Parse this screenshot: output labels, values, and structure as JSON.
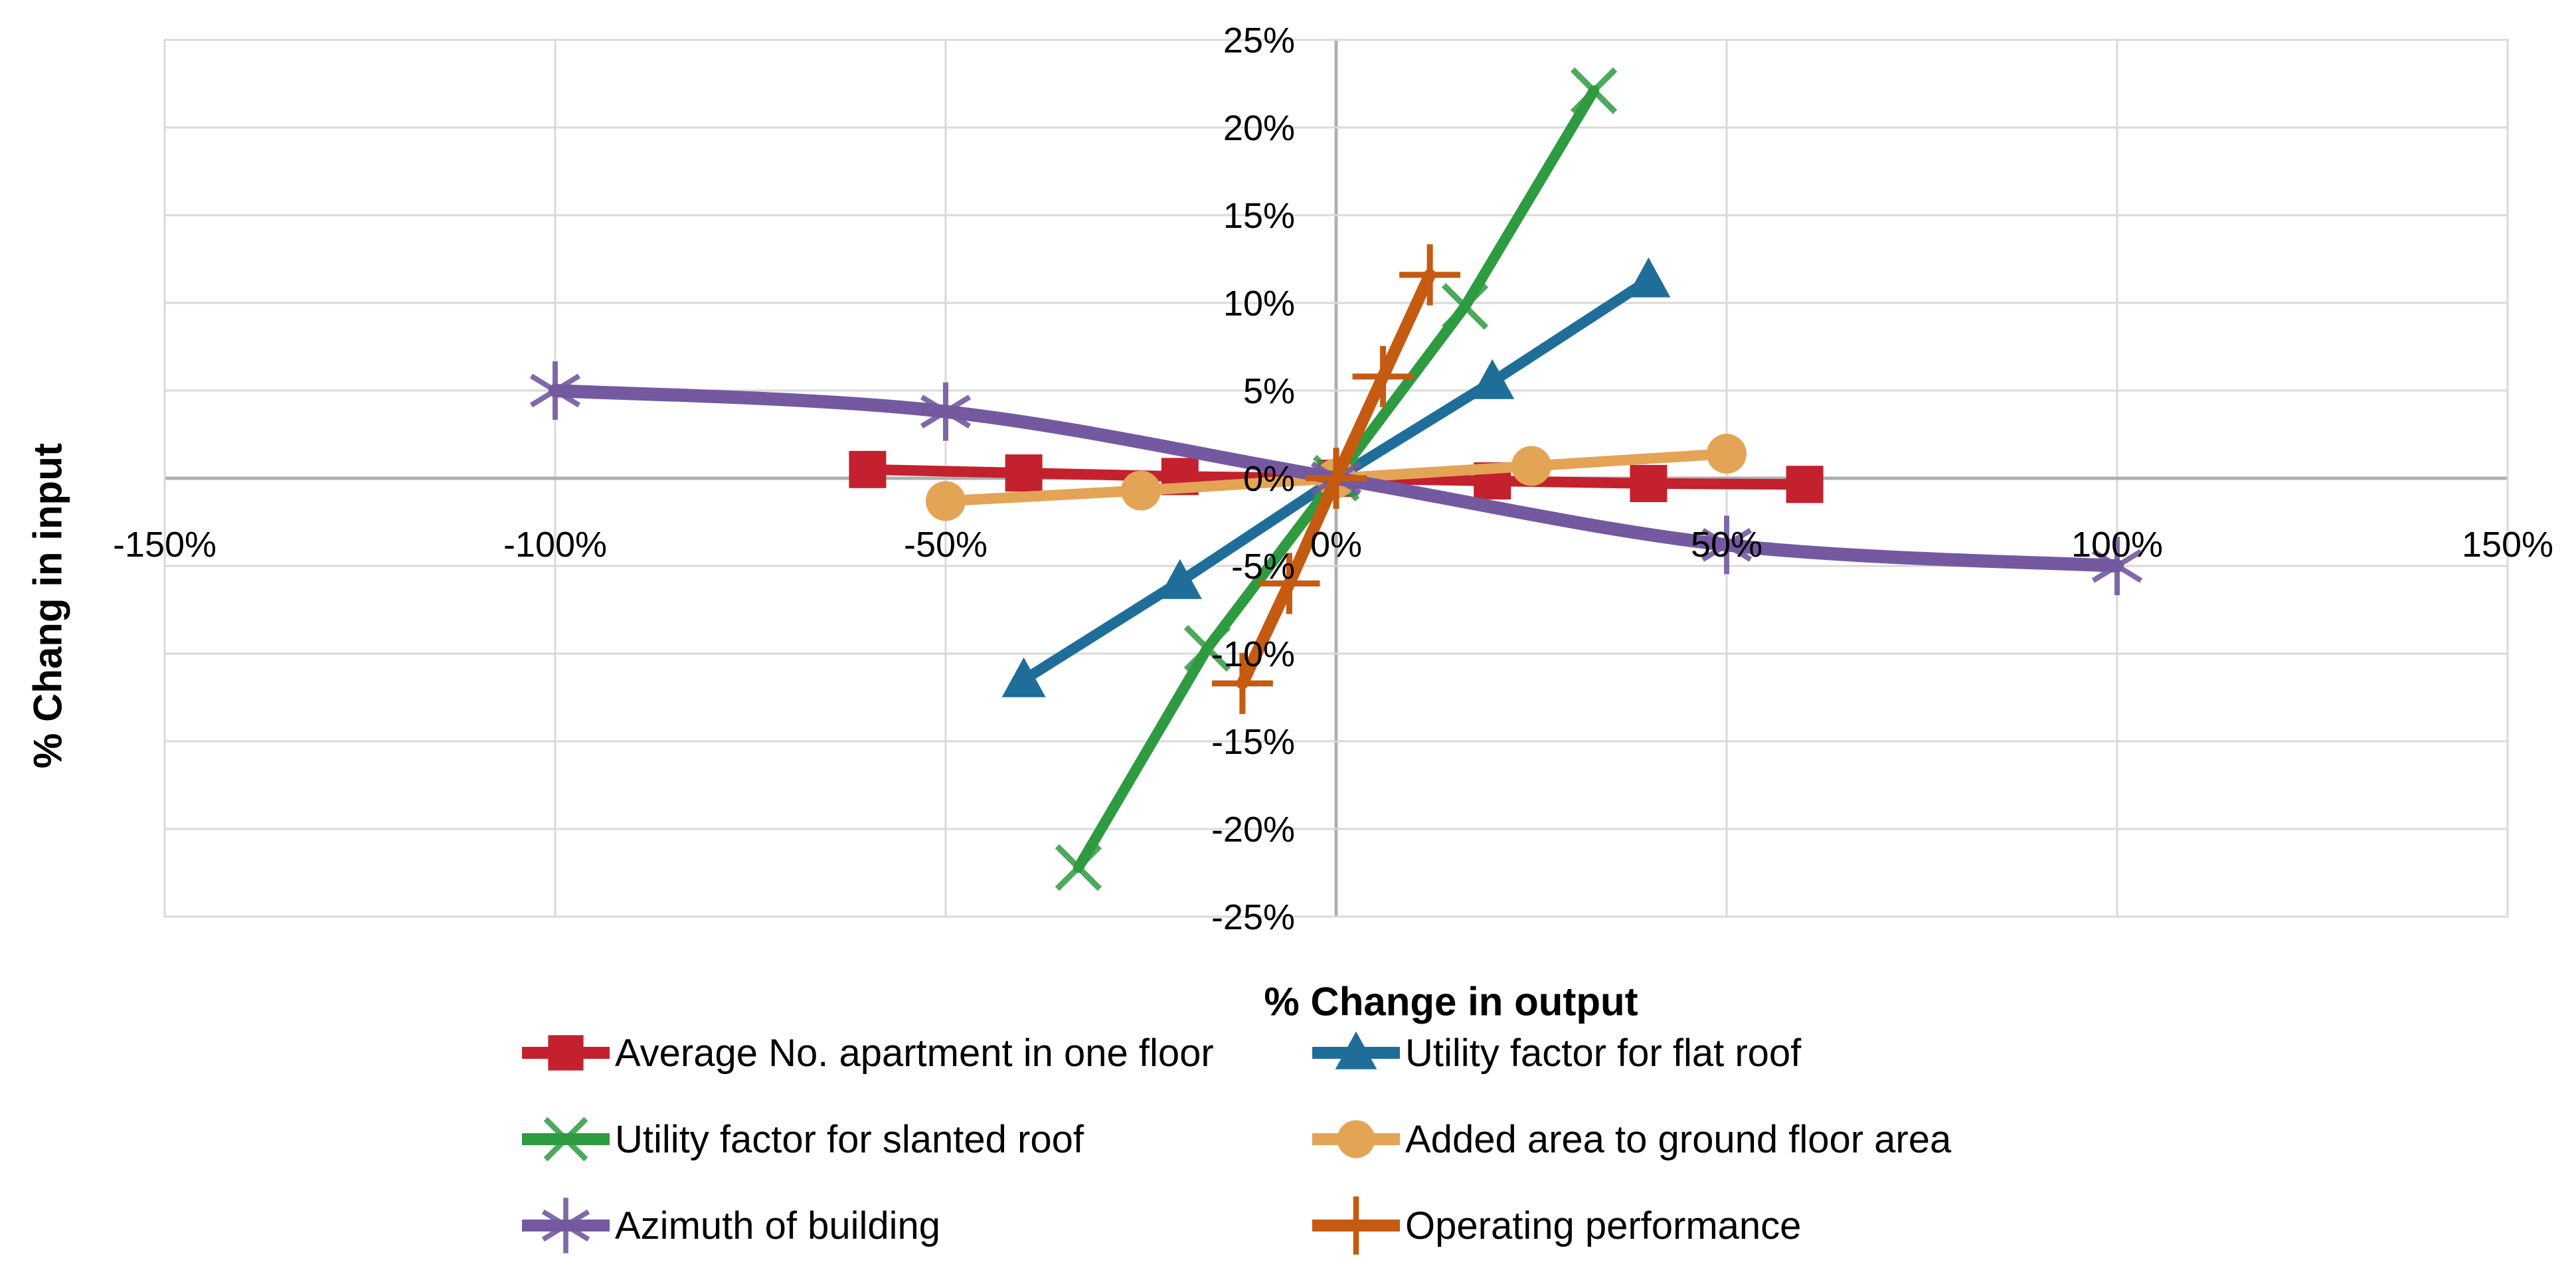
{
  "chart_data": {
    "type": "line",
    "title": "",
    "xlabel": "% Change in output",
    "ylabel": "% Chang in input",
    "xlim": [
      -150,
      150
    ],
    "ylim": [
      -25,
      25
    ],
    "x_ticks": [
      -150,
      -100,
      -50,
      0,
      50,
      100,
      150
    ],
    "x_tick_labels": [
      "-150%",
      "-100%",
      "-50%",
      "0%",
      "50%",
      "100%",
      "150%"
    ],
    "y_ticks": [
      25,
      20,
      15,
      10,
      5,
      0,
      -5,
      -10,
      -15,
      -20,
      -25
    ],
    "y_tick_labels": [
      "25%",
      "20%",
      "15%",
      "10%",
      "5%",
      "0%",
      "-5%",
      "-10%",
      "-15%",
      "-20%",
      "-25%"
    ],
    "grid": true,
    "legend_position": "bottom-two-columns",
    "series": [
      {
        "name": "Average No. apartment in one floor",
        "color": "#C3212E",
        "marker": "square",
        "smooth": false,
        "points": [
          [
            -60,
            0.5
          ],
          [
            -40,
            0.3
          ],
          [
            -20,
            0.1
          ],
          [
            0,
            0
          ],
          [
            20,
            -0.15
          ],
          [
            40,
            -0.3
          ],
          [
            60,
            -0.35
          ]
        ]
      },
      {
        "name": "Utility factor for flat roof",
        "color": "#1F6E99",
        "marker": "triangle",
        "smooth": false,
        "points": [
          [
            -40,
            -11.5
          ],
          [
            -20,
            -5.9
          ],
          [
            0,
            0
          ],
          [
            20,
            5.5
          ],
          [
            40,
            11.3
          ]
        ]
      },
      {
        "name": "Utility factor for slanted roof",
        "color": "#2E9B41",
        "marker": "x",
        "smooth": false,
        "points": [
          [
            -33,
            -22.2
          ],
          [
            -16.5,
            -9.7
          ],
          [
            0,
            0
          ],
          [
            16.5,
            9.8
          ],
          [
            33,
            22.1
          ]
        ]
      },
      {
        "name": "Added area to ground floor area",
        "color": "#E3A455",
        "marker": "circle",
        "smooth": false,
        "points": [
          [
            -50,
            -1.3
          ],
          [
            -25,
            -0.7
          ],
          [
            0,
            0
          ],
          [
            25,
            0.7
          ],
          [
            50,
            1.4
          ]
        ]
      },
      {
        "name": "Azimuth of building",
        "color": "#7459A0",
        "marker": "asterisk",
        "smooth": true,
        "points": [
          [
            -100,
            5
          ],
          [
            -50,
            3.8
          ],
          [
            0,
            0
          ],
          [
            50,
            -3.8
          ],
          [
            100,
            -5
          ]
        ]
      },
      {
        "name": "Operating performance",
        "color": "#C55A11",
        "marker": "plus",
        "smooth": false,
        "points": [
          [
            -12,
            -11.7
          ],
          [
            -6,
            -6
          ],
          [
            0,
            0
          ],
          [
            6,
            5.8
          ],
          [
            12,
            11.6
          ]
        ]
      }
    ],
    "colors": {
      "background": "#FFFFFF",
      "gridline": "#D9D9D9",
      "axis_line": "#AFAFAF",
      "text": "#000000"
    }
  }
}
